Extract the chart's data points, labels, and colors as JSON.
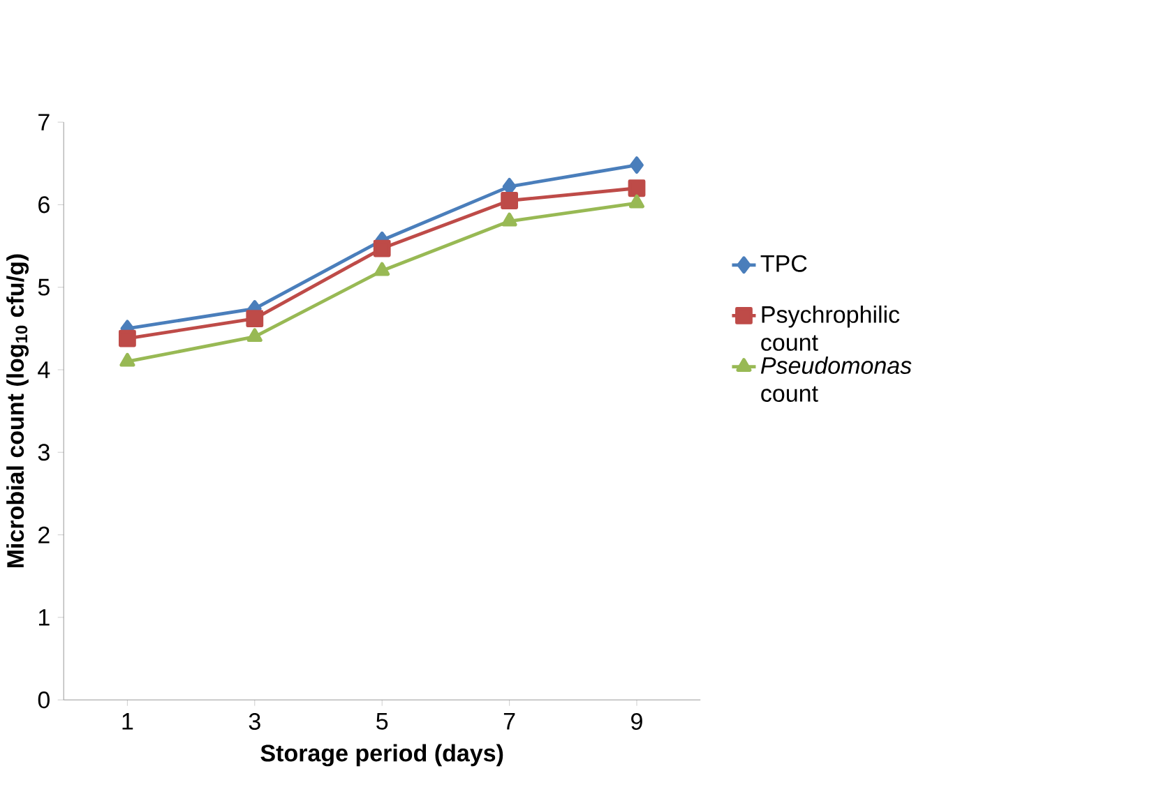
{
  "chart_data": {
    "type": "line",
    "xlabel": "Storage period (days)",
    "ylabel": "Microbial count (log$_{10}$ cfu/g)",
    "categories": [
      "1",
      "3",
      "5",
      "7",
      "9"
    ],
    "series": [
      {
        "name": "TPC",
        "color": "#4a7ebb",
        "marker": "diamond",
        "values": [
          4.5,
          4.74,
          5.57,
          6.22,
          6.48
        ]
      },
      {
        "name": "Psychrophilic count",
        "color": "#be4b48",
        "marker": "square",
        "values": [
          4.38,
          4.62,
          5.47,
          6.05,
          6.2
        ]
      },
      {
        "name": "*Pseudomonas* count",
        "color": "#98b954",
        "marker": "triangle",
        "values": [
          4.1,
          4.4,
          5.2,
          5.8,
          6.02
        ]
      }
    ],
    "ylim": [
      0,
      7
    ],
    "yticks": [
      0,
      1,
      2,
      3,
      4,
      5,
      6,
      7
    ],
    "grid": false,
    "legend": "right"
  }
}
